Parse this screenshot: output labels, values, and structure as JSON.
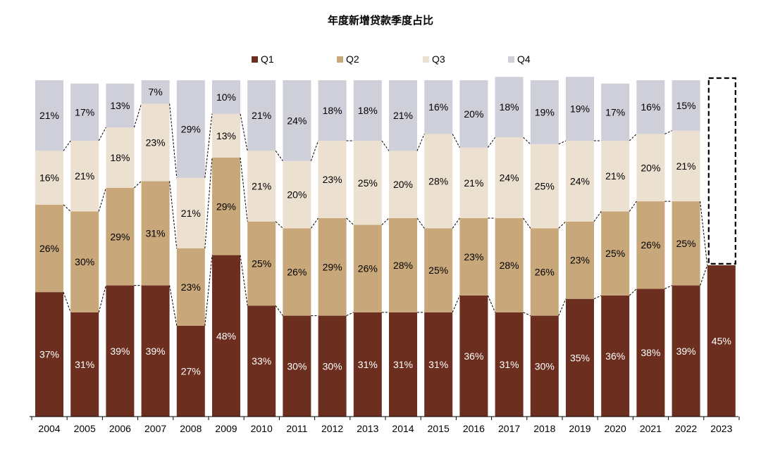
{
  "chart_data": {
    "type": "bar",
    "stacked": true,
    "title": "年度新增贷款季度占比",
    "categories": [
      "2004",
      "2005",
      "2006",
      "2007",
      "2008",
      "2009",
      "2010",
      "2011",
      "2012",
      "2013",
      "2014",
      "2015",
      "2016",
      "2017",
      "2018",
      "2019",
      "2020",
      "2021",
      "2022",
      "2023"
    ],
    "series": [
      {
        "name": "Q1",
        "color": "#6b2e1f",
        "label_color": "#ffffff",
        "values": [
          37,
          31,
          39,
          39,
          27,
          48,
          33,
          30,
          30,
          31,
          31,
          31,
          36,
          31,
          30,
          35,
          36,
          38,
          39,
          45
        ]
      },
      {
        "name": "Q2",
        "color": "#c8a77a",
        "label_color": "#000000",
        "values": [
          26,
          30,
          29,
          31,
          23,
          29,
          25,
          26,
          29,
          26,
          28,
          25,
          23,
          28,
          26,
          23,
          25,
          26,
          25,
          null
        ]
      },
      {
        "name": "Q3",
        "color": "#ece1d1",
        "label_color": "#000000",
        "values": [
          16,
          21,
          18,
          23,
          21,
          13,
          21,
          20,
          23,
          25,
          20,
          28,
          21,
          24,
          25,
          24,
          21,
          20,
          21,
          null
        ]
      },
      {
        "name": "Q4",
        "color": "#cfcfda",
        "label_color": "#000000",
        "values": [
          21,
          17,
          13,
          7,
          29,
          10,
          21,
          24,
          18,
          18,
          21,
          16,
          20,
          18,
          19,
          19,
          17,
          16,
          15,
          null
        ]
      }
    ],
    "label_suffix": "%",
    "ylim": [
      0,
      100
    ],
    "legend_position": "top",
    "grid": false,
    "connector_lines": "dashed",
    "highlight": {
      "category": "2023",
      "style": "dashed-outline"
    }
  }
}
